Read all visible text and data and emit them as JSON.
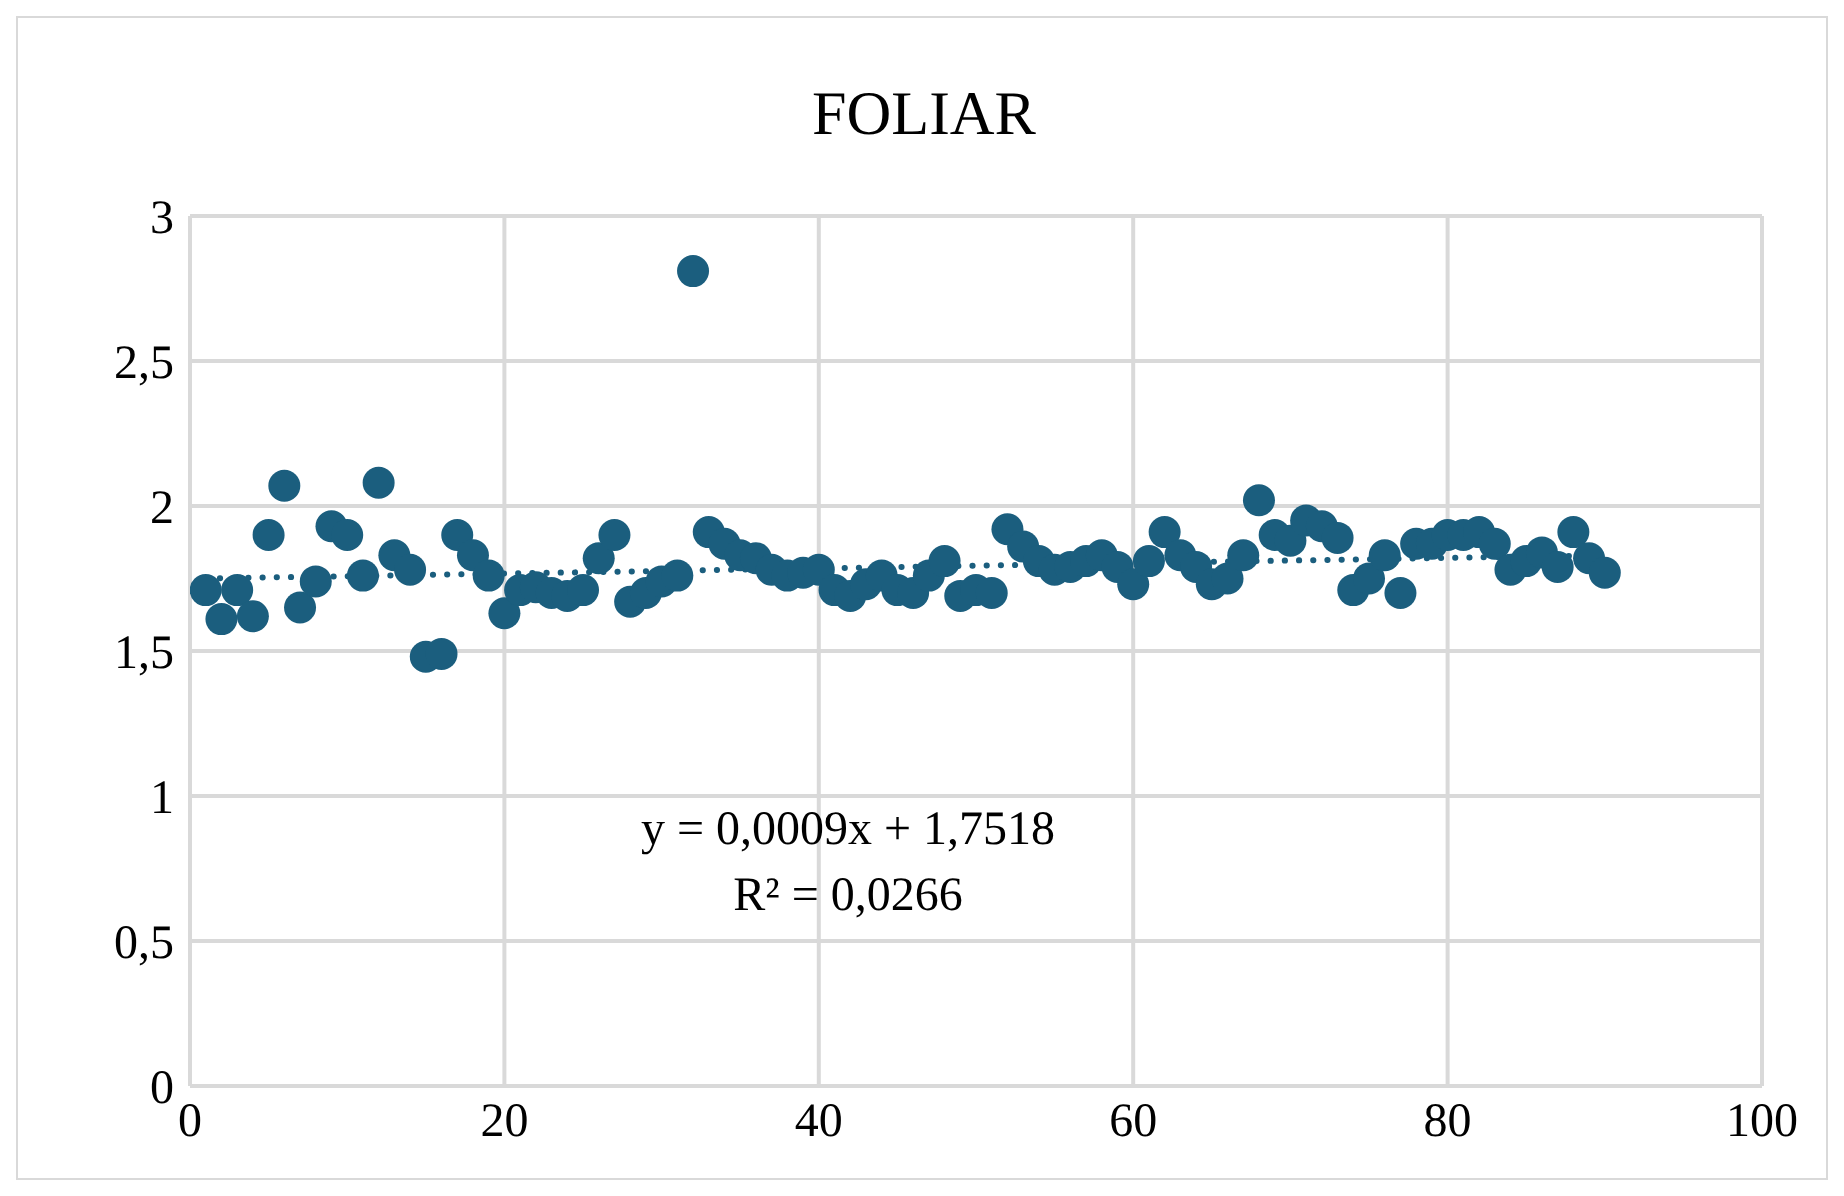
{
  "chart_data": {
    "type": "scatter",
    "title": "FOLIAR",
    "xlim": [
      0,
      100
    ],
    "xticks": [
      0,
      20,
      40,
      60,
      80,
      100
    ],
    "ylim": [
      0,
      3
    ],
    "yticks": [
      0,
      {
        "value": 0.5,
        "label": "0,5"
      },
      1,
      {
        "value": 1.5,
        "label": "1,5"
      },
      2,
      {
        "value": 2.5,
        "label": "2,5"
      },
      3
    ],
    "grid": true,
    "marker": "circle",
    "series": [
      {
        "color": "#1b5e7e",
        "x": [
          1,
          2,
          3,
          4,
          5,
          6,
          7,
          8,
          9,
          10,
          11,
          12,
          13,
          14,
          15,
          16,
          17,
          18,
          19,
          20,
          21,
          22,
          23,
          24,
          25,
          26,
          27,
          28,
          29,
          30,
          31,
          32,
          33,
          34,
          35,
          36,
          37,
          38,
          39,
          40,
          41,
          42,
          43,
          44,
          45,
          46,
          47,
          48,
          49,
          50,
          51,
          52,
          53,
          54,
          55,
          56,
          57,
          58,
          59,
          60,
          61,
          62,
          63,
          64,
          65,
          66,
          67,
          68,
          69,
          70,
          71,
          72,
          73,
          74,
          75,
          76,
          77,
          78,
          79,
          80,
          81,
          82,
          83,
          84,
          85,
          86,
          87,
          88,
          89,
          90
        ],
        "values": [
          1.71,
          1.61,
          1.71,
          1.62,
          1.9,
          2.07,
          1.65,
          1.74,
          1.93,
          1.9,
          1.76,
          2.08,
          1.83,
          1.78,
          1.48,
          1.49,
          1.9,
          1.83,
          1.76,
          1.63,
          1.71,
          1.72,
          1.7,
          1.69,
          1.71,
          1.82,
          1.9,
          1.67,
          1.7,
          1.74,
          1.76,
          2.81,
          1.91,
          1.87,
          1.83,
          1.82,
          1.78,
          1.76,
          1.77,
          1.78,
          1.71,
          1.69,
          1.73,
          1.76,
          1.71,
          1.7,
          1.76,
          1.81,
          1.69,
          1.71,
          1.7,
          1.92,
          1.86,
          1.81,
          1.78,
          1.79,
          1.81,
          1.83,
          1.79,
          1.73,
          1.81,
          1.91,
          1.83,
          1.79,
          1.73,
          1.75,
          1.83,
          2.02,
          1.9,
          1.88,
          1.95,
          1.93,
          1.89,
          1.71,
          1.75,
          1.83,
          1.7,
          1.87,
          1.87,
          1.9,
          1.9,
          1.91,
          1.87,
          1.78,
          1.81,
          1.84,
          1.79,
          1.91,
          1.82,
          1.77
        ]
      },
      {
        "type": "line",
        "color": "#1b5e7e",
        "line_style": "dotted",
        "marker": "none",
        "x": [
          1,
          90
        ],
        "values": [
          1.75,
          1.83
        ]
      }
    ],
    "annotations": [
      "y = 0,0009x + 1,7518",
      "R² = 0,0266"
    ]
  }
}
